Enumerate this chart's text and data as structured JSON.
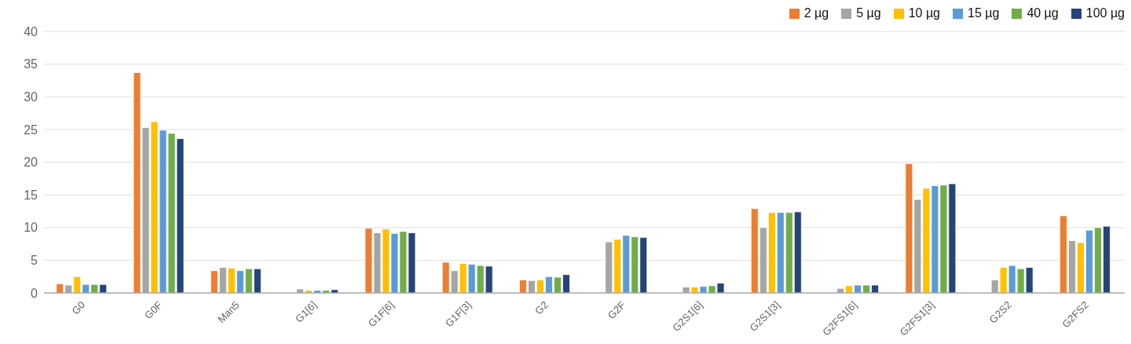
{
  "chart_data": {
    "type": "bar",
    "categories": [
      "G0",
      "G0F",
      "Man5",
      "G1[6]",
      "G1F[6]",
      "G1F[3]",
      "G2",
      "G2F",
      "G2S1[6]",
      "G2S1[3]",
      "G2FS1[6]",
      "G2FS1[3]",
      "G2S2",
      "G2FS2"
    ],
    "series": [
      {
        "name": "2 µg",
        "color": "#ed7d31",
        "values": [
          1.4,
          33.7,
          3.4,
          null,
          9.9,
          4.7,
          2.0,
          null,
          null,
          12.9,
          null,
          19.8,
          null,
          11.8
        ]
      },
      {
        "name": "5 µg",
        "color": "#a5a5a5",
        "values": [
          1.2,
          25.3,
          3.9,
          0.6,
          9.2,
          3.4,
          1.9,
          7.8,
          0.9,
          10.0,
          0.7,
          14.3,
          2.0,
          8.0
        ]
      },
      {
        "name": "10 µg",
        "color": "#ffc000",
        "values": [
          2.5,
          26.2,
          3.8,
          0.4,
          9.8,
          4.5,
          2.0,
          8.2,
          0.9,
          12.3,
          1.1,
          16.0,
          3.9,
          7.7
        ]
      },
      {
        "name": "15 µg",
        "color": "#5b9bd5",
        "values": [
          1.3,
          24.9,
          3.4,
          0.4,
          9.1,
          4.4,
          2.5,
          8.8,
          1.0,
          12.3,
          1.2,
          16.4,
          4.2,
          9.6
        ]
      },
      {
        "name": "40 µg",
        "color": "#70ad47",
        "values": [
          1.3,
          24.4,
          3.7,
          0.4,
          9.4,
          4.2,
          2.4,
          8.6,
          1.1,
          12.3,
          1.2,
          16.5,
          3.7,
          10.0
        ]
      },
      {
        "name": "100 µg",
        "color": "#264478",
        "values": [
          1.3,
          23.6,
          3.7,
          0.5,
          9.2,
          4.1,
          2.8,
          8.5,
          1.5,
          12.4,
          1.2,
          16.7,
          3.9,
          10.2
        ]
      }
    ],
    "ylim": [
      0,
      40
    ],
    "yticks": [
      0,
      5,
      10,
      15,
      20,
      25,
      30,
      35,
      40
    ],
    "grid": "y",
    "legend": "top right"
  }
}
